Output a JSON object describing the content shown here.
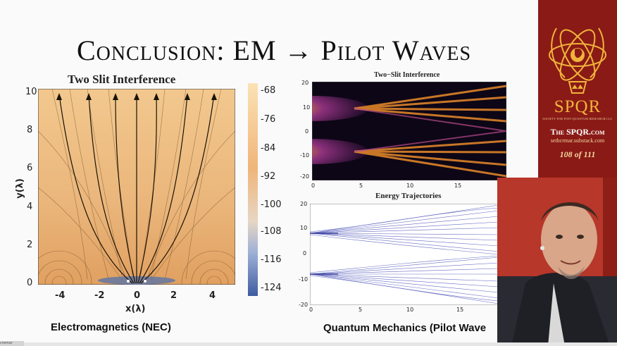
{
  "slide": {
    "title": "Conclusion: EM → Pilot Waves"
  },
  "left_plot": {
    "title": "Two Slit Interference",
    "x_ticks": [
      "-4",
      "-2",
      "0",
      "2",
      "4"
    ],
    "y_ticks": [
      "10",
      "8",
      "6",
      "4",
      "2",
      "0"
    ],
    "x_label": "x(λ)",
    "y_label": "y(λ)",
    "caption": "Electromagnetics (NEC)"
  },
  "colorbar": {
    "labels": [
      "-68",
      "-76",
      "-84",
      "-92",
      "-100",
      "-108",
      "-116",
      "-124"
    ]
  },
  "right_top": {
    "title": "Two−Slit Interference",
    "y_ticks": [
      "20",
      "10",
      "0",
      "-10",
      "-20"
    ],
    "x_ticks": [
      "0",
      "5",
      "10",
      "15",
      "20"
    ]
  },
  "right_bottom": {
    "title": "Energy Trajectories",
    "y_ticks": [
      "20",
      "10",
      "0",
      "-10",
      "-20"
    ],
    "x_ticks": [
      "0",
      "5",
      "10",
      "15"
    ],
    "caption": "Quantum Mechanics (Pilot Wave"
  },
  "sidebar": {
    "logo_text": "SPQR",
    "small_text": "SOCIETY FOR POST-QUANTUM RESEARCH LLC",
    "site": "The SPQR.com",
    "substack": "sethcrmar.substack.com",
    "page": "108 of 111",
    "bg_color": "#8a1a16",
    "accent_color": "#f0b43a"
  },
  "bottom": {
    "tag": "cremar"
  }
}
